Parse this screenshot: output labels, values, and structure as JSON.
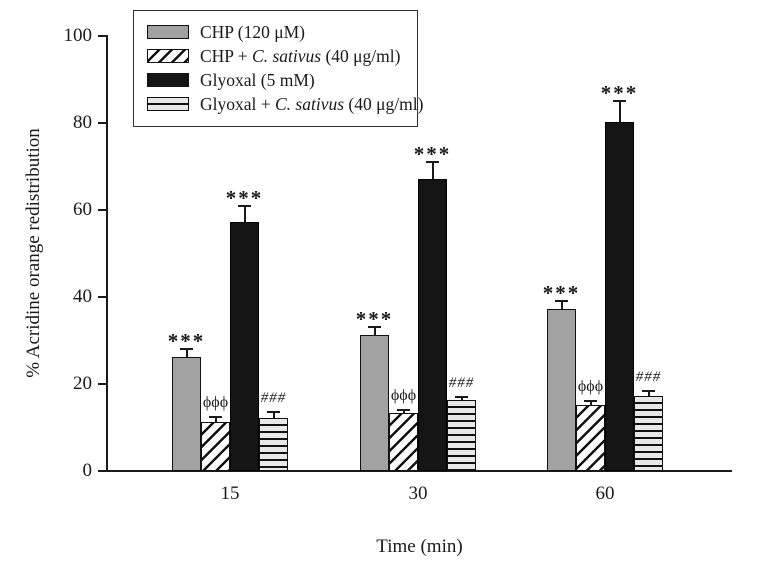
{
  "chart_data": {
    "type": "bar",
    "title": "",
    "xlabel": "Time (min)",
    "ylabel": "% Acridine orange redistribution",
    "ylim": [
      0,
      100
    ],
    "yticks": [
      0,
      20,
      40,
      60,
      80,
      100
    ],
    "categories": [
      "15",
      "30",
      "60"
    ],
    "grid": false,
    "legend_position": "upper-left-inside",
    "series": [
      {
        "name": "CHP (120 μM)",
        "label_parts": [
          {
            "text": "CHP (120 μM)"
          }
        ],
        "pattern": "solid-gray",
        "color": "#a2a2a2",
        "values": [
          26,
          31,
          37
        ],
        "errors": [
          2,
          2,
          2
        ],
        "annotations": [
          "***",
          "***",
          "***"
        ]
      },
      {
        "name": "CHP + C. sativus (40 μg/ml)",
        "label_parts": [
          {
            "text": "CHP + "
          },
          {
            "text": "C. sativus",
            "italic": true
          },
          {
            "text": " (40 μg/ml)"
          }
        ],
        "pattern": "diagonal-hatch",
        "color": "#ffffff",
        "values": [
          11,
          13,
          15
        ],
        "errors": [
          1.5,
          1,
          1
        ],
        "annotations": [
          "ϕϕϕ",
          "ϕϕϕ",
          "ϕϕϕ"
        ]
      },
      {
        "name": "Glyoxal (5 mM)",
        "label_parts": [
          {
            "text": "Glyoxal (5 mM)"
          }
        ],
        "pattern": "solid-black",
        "color": "#151515",
        "values": [
          57,
          67,
          80
        ],
        "errors": [
          4,
          4,
          5
        ],
        "annotations": [
          "***",
          "***",
          "***"
        ]
      },
      {
        "name": "Glyoxal + C. sativus (40 μg/ml)",
        "label_parts": [
          {
            "text": "Glyoxal + "
          },
          {
            "text": "C. sativus",
            "italic": true
          },
          {
            "text": " (40 μg/ml)"
          }
        ],
        "pattern": "horizontal-stripes",
        "color": "#e8e8e8",
        "values": [
          12,
          16,
          17
        ],
        "errors": [
          1.5,
          1,
          1.5
        ],
        "annotations": [
          "###",
          "###",
          "###"
        ]
      }
    ]
  }
}
